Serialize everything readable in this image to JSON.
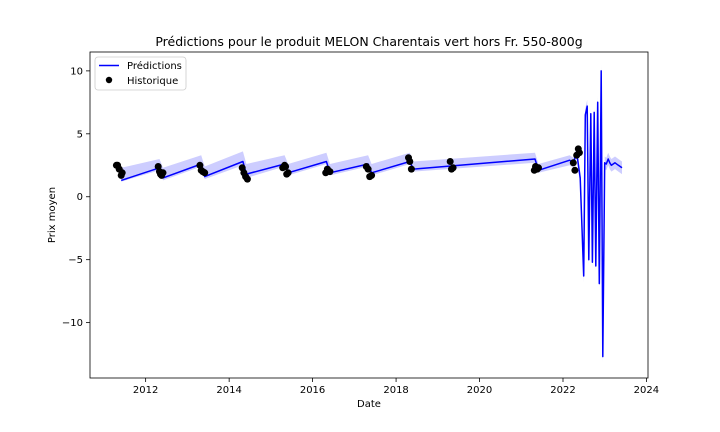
{
  "chart_data": {
    "type": "line",
    "title": "Prédictions pour le produit MELON Charentais vert hors Fr. 550-800g",
    "xlabel": "Date",
    "ylabel": "Prix moyen",
    "xlim": [
      "2010-09-01",
      "2024-01-15"
    ],
    "ylim": [
      -14.4,
      11.5
    ],
    "x_ticks": [
      "2012",
      "2014",
      "2016",
      "2018",
      "2020",
      "2022",
      "2024"
    ],
    "y_ticks": [
      10,
      5,
      0,
      -5,
      -10
    ],
    "y_tick_labels": [
      "10",
      "5",
      "0",
      "−5",
      "−10"
    ],
    "grid": false,
    "legend": {
      "position": "top-left",
      "entries": [
        "Prédictions",
        "Historique"
      ]
    },
    "colors": {
      "predictions_line": "#0000ff",
      "confidence_band": "#c8c8ff",
      "historique_points": "#000000"
    },
    "series": [
      {
        "name": "Prédictions",
        "kind": "line",
        "x": [
          "2011-06-01",
          "2012-05-01",
          "2012-06-01",
          "2013-05-01",
          "2013-06-01",
          "2014-05-01",
          "2014-06-01",
          "2015-05-01",
          "2015-06-01",
          "2016-05-01",
          "2016-06-01",
          "2017-05-01",
          "2017-06-01",
          "2018-05-01",
          "2018-06-01",
          "2021-05-01",
          "2021-06-01",
          "2022-03-01",
          "2022-04-01",
          "2022-05-01",
          "2022-06-01",
          "2022-07-01",
          "2022-07-15",
          "2022-08-01",
          "2022-08-15",
          "2022-09-01",
          "2022-09-15",
          "2022-10-01",
          "2022-10-15",
          "2022-11-01",
          "2022-11-15",
          "2022-12-01",
          "2022-12-15",
          "2023-01-01",
          "2023-01-15",
          "2023-02-01",
          "2023-02-15",
          "2023-03-01",
          "2023-04-01",
          "2023-05-01",
          "2023-06-01"
        ],
        "y": [
          1.3,
          2.3,
          1.5,
          2.6,
          1.6,
          2.8,
          1.8,
          2.6,
          1.9,
          2.8,
          1.9,
          2.6,
          1.9,
          2.8,
          2.2,
          3.0,
          2.1,
          2.9,
          2.7,
          3.5,
          1.5,
          -6.3,
          6.5,
          7.2,
          -5.0,
          6.6,
          -5.2,
          6.7,
          -5.5,
          7.5,
          -6.9,
          10.0,
          -12.7,
          2.7,
          2.6,
          3.0,
          2.7,
          2.5,
          2.7,
          2.5,
          2.3
        ]
      },
      {
        "name": "confidence-band",
        "kind": "band",
        "x": [
          "2011-06-01",
          "2012-05-01",
          "2012-06-01",
          "2013-05-01",
          "2013-06-01",
          "2014-05-01",
          "2014-06-01",
          "2015-05-01",
          "2015-06-01",
          "2016-05-01",
          "2016-06-01",
          "2017-05-01",
          "2017-06-01",
          "2018-05-01",
          "2018-06-01",
          "2021-05-01",
          "2021-06-01",
          "2022-03-01",
          "2022-04-01",
          "2022-05-01",
          "2022-06-01",
          "2022-07-01",
          "2022-07-15",
          "2022-08-01",
          "2022-08-15",
          "2022-09-01",
          "2022-09-15",
          "2022-10-01",
          "2022-10-15",
          "2022-11-01",
          "2022-11-15",
          "2022-12-01",
          "2022-12-15",
          "2023-01-01",
          "2023-01-15",
          "2023-02-01",
          "2023-02-15",
          "2023-03-01",
          "2023-04-01",
          "2023-05-01",
          "2023-06-01"
        ],
        "lower": [
          1.2,
          2.1,
          1.3,
          2.4,
          1.4,
          2.5,
          1.5,
          2.4,
          1.7,
          2.6,
          1.7,
          2.4,
          1.7,
          2.6,
          2.0,
          2.7,
          1.9,
          2.5,
          2.3,
          3.0,
          1.0,
          -6.8,
          6.0,
          6.7,
          -5.5,
          6.1,
          -5.7,
          6.2,
          -6.0,
          7.0,
          -7.4,
          9.5,
          -13.2,
          2.2,
          2.1,
          2.5,
          2.2,
          2.0,
          2.2,
          2.0,
          1.8
        ],
        "upper": [
          2.3,
          3.0,
          2.3,
          3.3,
          2.4,
          3.6,
          2.6,
          3.3,
          2.6,
          3.5,
          2.6,
          3.3,
          2.6,
          3.5,
          2.8,
          3.5,
          2.6,
          3.3,
          3.1,
          4.0,
          2.0,
          -5.8,
          7.0,
          7.7,
          -4.5,
          7.1,
          -4.7,
          7.2,
          -5.0,
          8.0,
          -6.4,
          10.5,
          -12.2,
          3.2,
          3.1,
          3.5,
          3.2,
          3.0,
          3.2,
          3.0,
          2.8
        ]
      },
      {
        "name": "Historique",
        "kind": "scatter",
        "x": [
          "2011-04-20",
          "2011-05-01",
          "2011-05-15",
          "2011-06-01",
          "2011-06-10",
          "2012-04-20",
          "2012-05-01",
          "2012-05-10",
          "2012-05-20",
          "2012-06-01",
          "2013-04-20",
          "2013-05-01",
          "2013-05-15",
          "2013-06-01",
          "2014-04-25",
          "2014-05-10",
          "2014-05-25",
          "2014-06-10",
          "2015-04-15",
          "2015-05-01",
          "2015-05-10",
          "2015-05-20",
          "2015-06-01",
          "2016-04-25",
          "2016-05-10",
          "2016-06-01",
          "2017-04-15",
          "2017-05-01",
          "2017-05-15",
          "2017-06-01",
          "2018-04-20",
          "2018-05-01",
          "2018-05-15",
          "2019-04-20",
          "2019-05-01",
          "2019-05-15",
          "2021-04-25",
          "2021-05-05",
          "2021-05-20",
          "2021-06-01",
          "2022-04-01",
          "2022-04-15",
          "2022-05-01",
          "2022-05-15",
          "2022-05-25"
        ],
        "y": [
          2.5,
          2.5,
          2.2,
          1.7,
          1.9,
          2.4,
          2.0,
          1.8,
          1.7,
          1.9,
          2.5,
          2.1,
          2.0,
          1.9,
          2.3,
          1.9,
          1.6,
          1.4,
          2.3,
          2.5,
          2.4,
          1.8,
          1.9,
          1.9,
          2.2,
          2.0,
          2.4,
          2.2,
          1.6,
          1.7,
          3.1,
          2.8,
          2.2,
          2.8,
          2.2,
          2.3,
          2.1,
          2.4,
          2.2,
          2.3,
          2.7,
          2.1,
          3.3,
          3.8,
          3.5
        ]
      }
    ]
  }
}
